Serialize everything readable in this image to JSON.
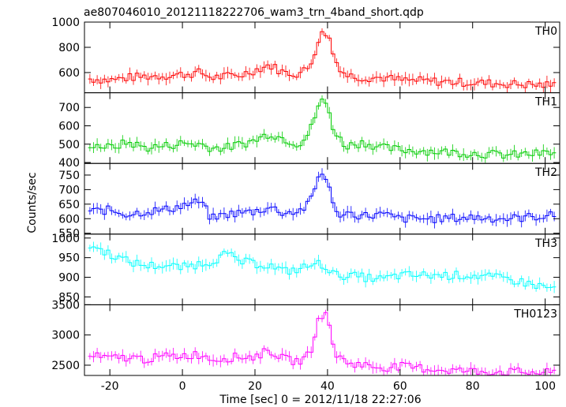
{
  "title": "ae807046010_20121118222706_wam3_trn_4band_short.qdp",
  "ylabel": "Counts/sec",
  "xlabel": "Time [sec] 0 = 2012/11/18 22:27:06",
  "chart_data": [
    {
      "type": "line",
      "step": true,
      "error_bars": true,
      "name": "TH0",
      "color": "#ff0000",
      "xlim": [
        -27,
        104
      ],
      "ylim": [
        440,
        1000
      ],
      "yticks": [
        600,
        800,
        1000
      ],
      "xticks": [
        -20,
        0,
        20,
        40,
        60,
        80,
        100
      ],
      "points": [
        [
          -25,
          550
        ],
        [
          -20,
          540
        ],
        [
          -15,
          560
        ],
        [
          -10,
          570
        ],
        [
          -5,
          575
        ],
        [
          0,
          585
        ],
        [
          5,
          600
        ],
        [
          8,
          560
        ],
        [
          12,
          570
        ],
        [
          16,
          580
        ],
        [
          20,
          620
        ],
        [
          24,
          660
        ],
        [
          28,
          600
        ],
        [
          32,
          590
        ],
        [
          35,
          640
        ],
        [
          38,
          900
        ],
        [
          40,
          920
        ],
        [
          42,
          700
        ],
        [
          45,
          580
        ],
        [
          50,
          560
        ],
        [
          55,
          560
        ],
        [
          60,
          540
        ],
        [
          70,
          530
        ],
        [
          80,
          520
        ],
        [
          90,
          510
        ],
        [
          100,
          500
        ],
        [
          103,
          500
        ]
      ]
    },
    {
      "type": "line",
      "step": true,
      "error_bars": true,
      "name": "TH1",
      "color": "#00cc00",
      "xlim": [
        -27,
        104
      ],
      "ylim": [
        395,
        780
      ],
      "yticks": [
        400,
        500,
        600,
        700
      ],
      "xticks": [
        -20,
        0,
        20,
        40,
        60,
        80,
        100
      ],
      "points": [
        [
          -25,
          500
        ],
        [
          -20,
          480
        ],
        [
          -15,
          510
        ],
        [
          -10,
          480
        ],
        [
          -5,
          490
        ],
        [
          0,
          505
        ],
        [
          5,
          500
        ],
        [
          8,
          480
        ],
        [
          12,
          480
        ],
        [
          16,
          500
        ],
        [
          20,
          520
        ],
        [
          24,
          560
        ],
        [
          28,
          530
        ],
        [
          32,
          500
        ],
        [
          35,
          560
        ],
        [
          38,
          740
        ],
        [
          40,
          710
        ],
        [
          42,
          560
        ],
        [
          45,
          490
        ],
        [
          50,
          510
        ],
        [
          55,
          480
        ],
        [
          60,
          470
        ],
        [
          70,
          460
        ],
        [
          80,
          450
        ],
        [
          90,
          440
        ],
        [
          100,
          450
        ],
        [
          103,
          450
        ]
      ]
    },
    {
      "type": "line",
      "step": true,
      "error_bars": true,
      "name": "TH2",
      "color": "#0000ff",
      "xlim": [
        -27,
        104
      ],
      "ylim": [
        547,
        790
      ],
      "yticks": [
        550,
        600,
        650,
        700,
        750
      ],
      "xticks": [
        -20,
        0,
        20,
        40,
        60,
        80,
        100
      ],
      "points": [
        [
          -25,
          625
        ],
        [
          -20,
          630
        ],
        [
          -15,
          615
        ],
        [
          -10,
          625
        ],
        [
          -5,
          630
        ],
        [
          0,
          645
        ],
        [
          5,
          660
        ],
        [
          8,
          600
        ],
        [
          12,
          615
        ],
        [
          16,
          620
        ],
        [
          20,
          625
        ],
        [
          24,
          640
        ],
        [
          28,
          620
        ],
        [
          32,
          625
        ],
        [
          35,
          650
        ],
        [
          38,
          760
        ],
        [
          40,
          740
        ],
        [
          42,
          615
        ],
        [
          45,
          620
        ],
        [
          50,
          610
        ],
        [
          55,
          615
        ],
        [
          60,
          600
        ],
        [
          70,
          600
        ],
        [
          80,
          605
        ],
        [
          90,
          600
        ],
        [
          100,
          610
        ],
        [
          103,
          610
        ]
      ]
    },
    {
      "type": "line",
      "step": true,
      "error_bars": true,
      "name": "TH3",
      "color": "#00ffff",
      "xlim": [
        -27,
        104
      ],
      "ylim": [
        830,
        1010
      ],
      "yticks": [
        850,
        900,
        950,
        1000
      ],
      "xticks": [
        -20,
        0,
        20,
        40,
        60,
        80,
        100
      ],
      "points": [
        [
          -25,
          980
        ],
        [
          -20,
          960
        ],
        [
          -15,
          940
        ],
        [
          -10,
          930
        ],
        [
          -5,
          930
        ],
        [
          0,
          925
        ],
        [
          5,
          935
        ],
        [
          8,
          940
        ],
        [
          12,
          960
        ],
        [
          16,
          940
        ],
        [
          20,
          935
        ],
        [
          24,
          930
        ],
        [
          28,
          915
        ],
        [
          32,
          920
        ],
        [
          35,
          930
        ],
        [
          38,
          935
        ],
        [
          40,
          925
        ],
        [
          42,
          905
        ],
        [
          45,
          905
        ],
        [
          50,
          900
        ],
        [
          55,
          895
        ],
        [
          60,
          905
        ],
        [
          70,
          905
        ],
        [
          80,
          905
        ],
        [
          90,
          895
        ],
        [
          100,
          875
        ],
        [
          103,
          870
        ]
      ]
    },
    {
      "type": "line",
      "step": true,
      "error_bars": true,
      "name": "TH0123",
      "color": "#ff00ff",
      "xlim": [
        -27,
        104
      ],
      "ylim": [
        2330,
        3500
      ],
      "yticks": [
        2500,
        3000,
        3500
      ],
      "xticks": [
        -20,
        0,
        20,
        40,
        60,
        80,
        100
      ],
      "points": [
        [
          -25,
          2650
        ],
        [
          -20,
          2610
        ],
        [
          -15,
          2630
        ],
        [
          -10,
          2600
        ],
        [
          -5,
          2640
        ],
        [
          0,
          2660
        ],
        [
          5,
          2680
        ],
        [
          8,
          2600
        ],
        [
          12,
          2620
        ],
        [
          16,
          2640
        ],
        [
          20,
          2640
        ],
        [
          24,
          2750
        ],
        [
          28,
          2600
        ],
        [
          32,
          2560
        ],
        [
          35,
          2670
        ],
        [
          38,
          3350
        ],
        [
          40,
          3300
        ],
        [
          42,
          2700
        ],
        [
          45,
          2550
        ],
        [
          50,
          2500
        ],
        [
          55,
          2460
        ],
        [
          60,
          2480
        ],
        [
          70,
          2430
        ],
        [
          80,
          2400
        ],
        [
          90,
          2390
        ],
        [
          100,
          2370
        ],
        [
          103,
          2380
        ]
      ]
    }
  ]
}
